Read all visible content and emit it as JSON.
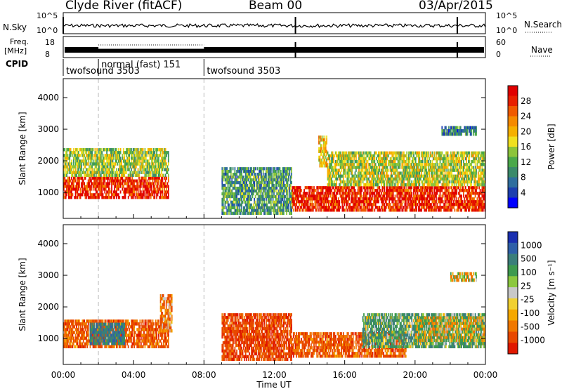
{
  "header": {
    "station": "Clyde River (fitACF)",
    "beam": "Beam 00",
    "date": "03/Apr/2015"
  },
  "noise_panel": {
    "left_label": "N.Sky",
    "right_label": "N.Search",
    "left_ticks": [
      "10^5",
      "10^0"
    ],
    "right_ticks": [
      "10^5",
      "10^0"
    ]
  },
  "freq_panel": {
    "left_label_1": "Freq.",
    "left_label_2": "[MHz]",
    "right_label": "Nave",
    "left_ticks": [
      "18",
      "8"
    ],
    "right_ticks": [
      "60",
      "0"
    ]
  },
  "cpid_panel": {
    "label": "CPID",
    "modes": [
      {
        "name": "twofsound",
        "id": "3503",
        "start_hr": 0.0,
        "end_hr": 2.0
      },
      {
        "name": "normal (fast)",
        "id": "151",
        "start_hr": 2.0,
        "end_hr": 8.0
      },
      {
        "name": "twofsound",
        "id": "3503",
        "start_hr": 8.0,
        "end_hr": 24.0
      }
    ]
  },
  "chart_data": [
    {
      "type": "heatmap",
      "panel": "power",
      "ylabel": "Slant Range [km]",
      "y_ticks": [
        1000,
        2000,
        3000,
        4000
      ],
      "ylim": [
        180,
        4600
      ],
      "xlim": [
        0,
        24
      ],
      "colorbar": {
        "label": "Power [dB]",
        "ticks": [
          "28",
          "24",
          "20",
          "16",
          "12",
          "8",
          "4"
        ],
        "range": [
          0,
          30
        ],
        "colors": [
          "#0000ff",
          "#1d3fb0",
          "#2f6e9e",
          "#3a8a6a",
          "#4aa84a",
          "#8cc43a",
          "#f0e020",
          "#f5b000",
          "#f58a00",
          "#f05a00",
          "#e82000",
          "#e00000"
        ]
      },
      "regions": [
        {
          "t0": 0.0,
          "t1": 6.0,
          "r0": 800,
          "r1": 1500,
          "value": 27
        },
        {
          "t0": 0.0,
          "t1": 6.0,
          "r0": 1500,
          "r1": 2400,
          "value": 14
        },
        {
          "t0": 9.0,
          "t1": 13.0,
          "r0": 300,
          "r1": 1800,
          "value": 10
        },
        {
          "t0": 13.0,
          "t1": 24.0,
          "r0": 400,
          "r1": 1200,
          "value": 27
        },
        {
          "t0": 15.0,
          "t1": 24.0,
          "r0": 1200,
          "r1": 2300,
          "value": 15
        },
        {
          "t0": 14.5,
          "t1": 15.0,
          "r0": 1800,
          "r1": 2800,
          "value": 18
        },
        {
          "t0": 21.5,
          "t1": 23.5,
          "r0": 2800,
          "r1": 3100,
          "value": 8
        }
      ]
    },
    {
      "type": "heatmap",
      "panel": "velocity",
      "ylabel": "Slant Range [km]",
      "y_ticks": [
        1000,
        2000,
        3000,
        4000
      ],
      "ylim": [
        180,
        4600
      ],
      "xlim": [
        0,
        24
      ],
      "xlabel": "Time UT",
      "x_ticks": [
        "00:00",
        "04:00",
        "08:00",
        "12:00",
        "16:00",
        "20:00",
        "00:00"
      ],
      "colorbar": {
        "label": "Velocity [m s⁻¹]",
        "ticks": [
          "1000",
          "500",
          "100",
          "25",
          "-25",
          "-100",
          "-500",
          "-1000"
        ],
        "colors": [
          "#1a2fb0",
          "#2e5fa8",
          "#3a7e7a",
          "#3e9a4e",
          "#8cc83e",
          "#c8c8c8",
          "#f0d030",
          "#f5a800",
          "#f07800",
          "#e84800",
          "#e01800"
        ]
      },
      "regions": [
        {
          "t0": 0.0,
          "t1": 6.0,
          "r0": 700,
          "r1": 1600,
          "value": -300
        },
        {
          "t0": 1.5,
          "t1": 3.5,
          "r0": 800,
          "r1": 1500,
          "value": 400
        },
        {
          "t0": 5.5,
          "t1": 6.2,
          "r0": 1200,
          "r1": 2400,
          "value": -200
        },
        {
          "t0": 9.0,
          "t1": 13.0,
          "r0": 300,
          "r1": 1800,
          "value": -400
        },
        {
          "t0": 13.0,
          "t1": 19.5,
          "r0": 400,
          "r1": 1200,
          "value": -300
        },
        {
          "t0": 17.0,
          "t1": 24.0,
          "r0": 700,
          "r1": 1800,
          "value": 200
        },
        {
          "t0": 20.0,
          "t1": 24.0,
          "r0": 900,
          "r1": 1700,
          "value": 0
        },
        {
          "t0": 22.0,
          "t1": 23.5,
          "r0": 2800,
          "r1": 3100,
          "value": 0
        }
      ]
    }
  ]
}
